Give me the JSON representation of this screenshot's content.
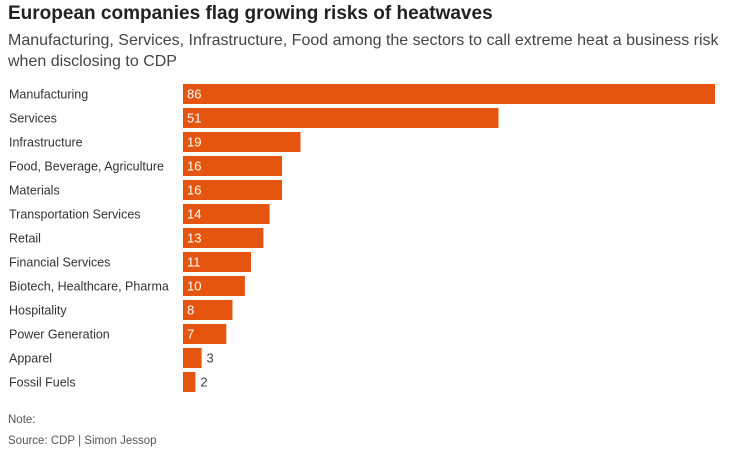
{
  "title": "European companies flag growing risks of heatwaves",
  "subtitle": "Manufacturing, Services, Infrastructure, Food among the sectors to call extreme heat a business risk when disclosing to CDP",
  "note": "Note:",
  "source": "Source: CDP | Simon Jessop",
  "colors": {
    "bar": "#E5550F",
    "label_inside": "#ffffff",
    "label_outside": "#444444"
  },
  "chart_data": {
    "type": "bar",
    "orientation": "horizontal",
    "categories": [
      "Manufacturing",
      "Services",
      "Infrastructure",
      "Food, Beverage, Agriculture",
      "Materials",
      "Transportation Services",
      "Retail",
      "Financial Services",
      "Biotech, Healthcare, Pharma",
      "Hospitality",
      "Power Generation",
      "Apparel",
      "Fossil Fuels"
    ],
    "values": [
      86,
      51,
      19,
      16,
      16,
      14,
      13,
      11,
      10,
      8,
      7,
      3,
      2
    ],
    "xlim": [
      0,
      86
    ],
    "grid": false,
    "legend": "none"
  }
}
